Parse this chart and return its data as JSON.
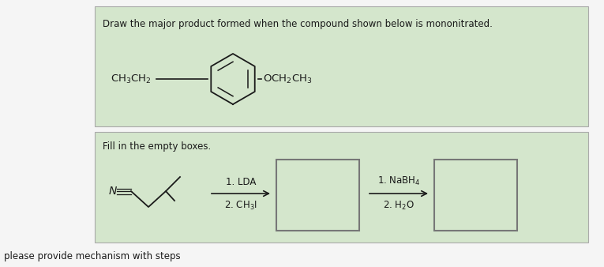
{
  "bg_color": "#f5f5f5",
  "panel1_bg": "#d4e6cc",
  "panel2_bg": "#d4e6cc",
  "panel1_title": "Draw the major product formed when the compound shown below is mononitrated.",
  "panel2_title": "Fill in the empty boxes.",
  "bottom_text": "please provide mechanism with steps",
  "text_color": "#1a1a1a",
  "box_edge_color": "#888888",
  "line_color": "#1a1a1a",
  "font_size_title": 8.5,
  "font_size_chem": 9.5,
  "font_size_bottom": 8.5,
  "font_size_arrow": 8.5
}
